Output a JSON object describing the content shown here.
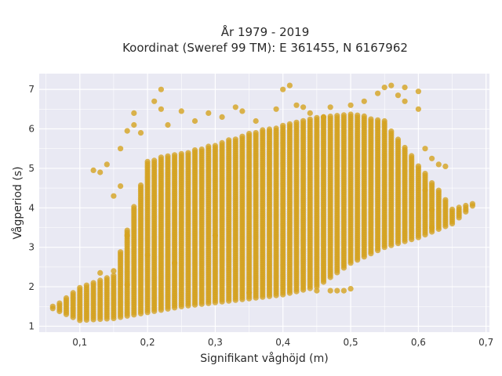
{
  "chart_data": {
    "type": "scatter",
    "title": "År 1979 - 2019",
    "subtitle": "Koordinat (Sweref 99 TM): E 361455, N 6167962",
    "xlabel": "Signifikant våghöjd (m)",
    "ylabel": "Vågperiod (s)",
    "xlim": [
      0.04,
      0.705
    ],
    "ylim": [
      0.85,
      7.4
    ],
    "xticks": [
      0.1,
      0.2,
      0.3,
      0.4,
      0.5,
      0.6,
      0.7
    ],
    "xtick_labels": [
      "0,1",
      "0,2",
      "0,3",
      "0,4",
      "0,5",
      "0,6",
      "0,7"
    ],
    "yticks": [
      1,
      2,
      3,
      4,
      5,
      6,
      7
    ],
    "ytick_labels": [
      "1",
      "2",
      "3",
      "4",
      "5",
      "6",
      "7"
    ],
    "grid": true,
    "legend": "none",
    "point_color": "#d4a21f",
    "plot_background": "#e9e9f3",
    "x_step": 0.01,
    "band": {
      "x": [
        0.06,
        0.1,
        0.15,
        0.2,
        0.25,
        0.3,
        0.35,
        0.4,
        0.45,
        0.5,
        0.55,
        0.6,
        0.65,
        0.68
      ],
      "ymin": [
        1.45,
        1.15,
        1.2,
        1.35,
        1.5,
        1.6,
        1.7,
        1.8,
        2.0,
        2.6,
        3.0,
        3.25,
        3.6,
        4.05
      ],
      "ymax": [
        1.5,
        2.0,
        2.3,
        5.2,
        5.4,
        5.6,
        5.9,
        6.1,
        6.3,
        6.4,
        6.2,
        5.1,
        4.0,
        4.1
      ]
    },
    "outliers": [
      [
        0.12,
        4.95
      ],
      [
        0.13,
        4.9
      ],
      [
        0.14,
        5.1
      ],
      [
        0.15,
        4.3
      ],
      [
        0.16,
        4.55
      ],
      [
        0.16,
        5.5
      ],
      [
        0.17,
        5.95
      ],
      [
        0.17,
        3.3
      ],
      [
        0.18,
        6.1
      ],
      [
        0.18,
        6.4
      ],
      [
        0.19,
        5.9
      ],
      [
        0.2,
        2.8
      ],
      [
        0.21,
        6.7
      ],
      [
        0.22,
        6.5
      ],
      [
        0.22,
        7.0
      ],
      [
        0.23,
        6.1
      ],
      [
        0.24,
        2.6
      ],
      [
        0.25,
        6.45
      ],
      [
        0.27,
        6.2
      ],
      [
        0.29,
        6.4
      ],
      [
        0.31,
        6.3
      ],
      [
        0.33,
        6.55
      ],
      [
        0.34,
        6.45
      ],
      [
        0.36,
        6.2
      ],
      [
        0.39,
        6.5
      ],
      [
        0.4,
        7.0
      ],
      [
        0.41,
        7.1
      ],
      [
        0.43,
        6.55
      ],
      [
        0.44,
        6.4
      ],
      [
        0.47,
        6.55
      ],
      [
        0.5,
        6.6
      ],
      [
        0.52,
        6.7
      ],
      [
        0.54,
        6.9
      ],
      [
        0.55,
        7.05
      ],
      [
        0.56,
        7.1
      ],
      [
        0.57,
        6.85
      ],
      [
        0.58,
        7.05
      ],
      [
        0.58,
        6.7
      ],
      [
        0.6,
        6.95
      ],
      [
        0.6,
        6.5
      ],
      [
        0.61,
        5.5
      ],
      [
        0.62,
        5.25
      ],
      [
        0.63,
        5.1
      ],
      [
        0.64,
        5.05
      ],
      [
        0.61,
        4.45
      ],
      [
        0.62,
        3.95
      ],
      [
        0.62,
        3.5
      ],
      [
        0.13,
        2.35
      ],
      [
        0.15,
        2.4
      ],
      [
        0.17,
        2.05
      ],
      [
        0.35,
        1.85
      ],
      [
        0.45,
        1.9
      ],
      [
        0.47,
        1.9
      ],
      [
        0.48,
        1.9
      ],
      [
        0.49,
        1.9
      ],
      [
        0.5,
        1.95
      ],
      [
        0.3,
        3.3
      ],
      [
        0.42,
        6.6
      ],
      [
        0.46,
        6.3
      ]
    ]
  }
}
